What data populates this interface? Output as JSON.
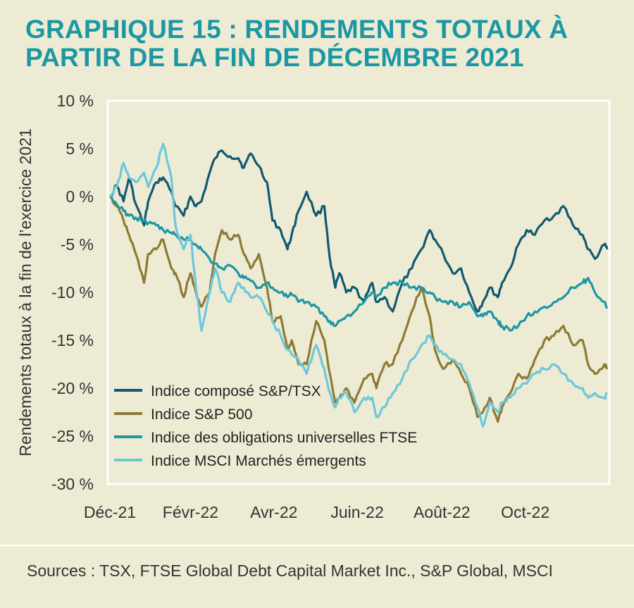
{
  "title": "GRAPHIQUE 15 : RENDEMENTS TOTAUX À PARTIR DE LA FIN DE DÉCEMBRE 2021",
  "source": "Sources : TSX, FTSE Global Debt Capital Market Inc., S&P Global, MSCI",
  "colors": {
    "background": "#eeebd5",
    "title": "#1b98a3",
    "plot_border": "#ffffff"
  },
  "chart_data": {
    "type": "line",
    "title": "GRAPHIQUE 15 : RENDEMENTS TOTAUX À PARTIR DE LA FIN DE DÉCEMBRE 2021",
    "xlabel": "",
    "ylabel": "Rendements totaux à la fin de l’exercice 2021",
    "ylim": [
      -30,
      10
    ],
    "yticks": [
      10,
      5,
      0,
      -5,
      -10,
      -15,
      -20,
      -25,
      -30
    ],
    "ytick_labels": [
      "10 %",
      "5 %",
      "0 %",
      "-5 %",
      "-10 %",
      "-15 %",
      "-20 %",
      "-25 %",
      "-30 %"
    ],
    "xlim": [
      "2021-12-31",
      "2022-12-30"
    ],
    "xticks": [
      "2021-12-31",
      "2022-02-28",
      "2022-04-30",
      "2022-06-30",
      "2022-08-31",
      "2022-10-31"
    ],
    "xtick_labels": [
      "Déc-21",
      "Févr-22",
      "Avr-22",
      "Juin-22",
      "Août-22",
      "Oct-22"
    ],
    "grid": false,
    "legend_position": "bottom-left",
    "series": [
      {
        "name": "Indice composé S&P/TSX",
        "color": "#0f5a70",
        "x": [
          "2021-12-31",
          "2022-01-05",
          "2022-01-10",
          "2022-01-14",
          "2022-01-19",
          "2022-01-25",
          "2022-01-28",
          "2022-02-03",
          "2022-02-08",
          "2022-02-14",
          "2022-02-17",
          "2022-02-23",
          "2022-02-28",
          "2022-03-04",
          "2022-03-08",
          "2022-03-14",
          "2022-03-18",
          "2022-03-23",
          "2022-03-29",
          "2022-04-04",
          "2022-04-08",
          "2022-04-13",
          "2022-04-19",
          "2022-04-25",
          "2022-04-29",
          "2022-05-05",
          "2022-05-10",
          "2022-05-13",
          "2022-05-18",
          "2022-05-24",
          "2022-05-31",
          "2022-06-06",
          "2022-06-10",
          "2022-06-14",
          "2022-06-17",
          "2022-06-22",
          "2022-06-28",
          "2022-07-05",
          "2022-07-11",
          "2022-07-14",
          "2022-07-20",
          "2022-07-26",
          "2022-08-02",
          "2022-08-09",
          "2022-08-16",
          "2022-08-22",
          "2022-08-26",
          "2022-09-01",
          "2022-09-08",
          "2022-09-14",
          "2022-09-20",
          "2022-09-26",
          "2022-09-30",
          "2022-10-05",
          "2022-10-11",
          "2022-10-14",
          "2022-10-20",
          "2022-10-26",
          "2022-11-01",
          "2022-11-07",
          "2022-11-14",
          "2022-11-21",
          "2022-11-28",
          "2022-12-05",
          "2022-12-12",
          "2022-12-16",
          "2022-12-21",
          "2022-12-28",
          "2022-12-30"
        ],
        "y": [
          0,
          1.2,
          -0.5,
          2.0,
          -0.8,
          -3.0,
          -0.5,
          1.5,
          2.0,
          0.5,
          -1.0,
          -2.0,
          0,
          -1.0,
          -0.5,
          2.5,
          4.0,
          4.8,
          4.2,
          4.0,
          3.0,
          4.5,
          3.2,
          1.5,
          -2.5,
          -3.5,
          -5.5,
          -4.0,
          -1.5,
          0.5,
          -2.0,
          -1.0,
          -6.5,
          -9.5,
          -8.0,
          -10.0,
          -9.5,
          -11.0,
          -9.0,
          -11.0,
          -10.5,
          -12.0,
          -9.0,
          -7.5,
          -5.5,
          -3.5,
          -4.5,
          -6.0,
          -8.0,
          -7.5,
          -10.0,
          -12.0,
          -11.0,
          -9.5,
          -10.5,
          -9.0,
          -7.5,
          -5.0,
          -3.5,
          -4.0,
          -2.5,
          -2.0,
          -1.0,
          -3.0,
          -4.0,
          -5.5,
          -6.5,
          -5.0,
          -5.5
        ]
      },
      {
        "name": "Indice S&P 500",
        "color": "#8c7a34",
        "x": [
          "2021-12-31",
          "2022-01-05",
          "2022-01-10",
          "2022-01-14",
          "2022-01-19",
          "2022-01-25",
          "2022-01-28",
          "2022-02-03",
          "2022-02-08",
          "2022-02-14",
          "2022-02-17",
          "2022-02-23",
          "2022-02-28",
          "2022-03-04",
          "2022-03-08",
          "2022-03-14",
          "2022-03-18",
          "2022-03-23",
          "2022-03-29",
          "2022-04-04",
          "2022-04-08",
          "2022-04-13",
          "2022-04-19",
          "2022-04-25",
          "2022-04-29",
          "2022-05-05",
          "2022-05-10",
          "2022-05-13",
          "2022-05-18",
          "2022-05-24",
          "2022-05-31",
          "2022-06-06",
          "2022-06-10",
          "2022-06-14",
          "2022-06-17",
          "2022-06-22",
          "2022-06-28",
          "2022-07-05",
          "2022-07-11",
          "2022-07-14",
          "2022-07-20",
          "2022-07-26",
          "2022-08-02",
          "2022-08-09",
          "2022-08-16",
          "2022-08-22",
          "2022-08-26",
          "2022-09-01",
          "2022-09-08",
          "2022-09-14",
          "2022-09-20",
          "2022-09-26",
          "2022-09-30",
          "2022-10-05",
          "2022-10-11",
          "2022-10-14",
          "2022-10-20",
          "2022-10-26",
          "2022-11-01",
          "2022-11-07",
          "2022-11-14",
          "2022-11-21",
          "2022-11-28",
          "2022-12-05",
          "2022-12-12",
          "2022-12-16",
          "2022-12-21",
          "2022-12-28",
          "2022-12-30"
        ],
        "y": [
          0,
          -1.0,
          -2.5,
          -4.0,
          -6.0,
          -9.0,
          -6.0,
          -5.5,
          -4.5,
          -7.5,
          -8.0,
          -10.5,
          -8.0,
          -10.0,
          -11.5,
          -10.0,
          -6.0,
          -3.5,
          -4.5,
          -4.0,
          -6.0,
          -7.5,
          -6.0,
          -9.5,
          -13.0,
          -12.5,
          -16.0,
          -15.0,
          -17.5,
          -17.5,
          -13.0,
          -15.0,
          -18.5,
          -21.5,
          -21.0,
          -20.0,
          -21.5,
          -19.0,
          -18.5,
          -20.0,
          -17.5,
          -17.5,
          -15.0,
          -12.0,
          -9.5,
          -12.5,
          -16.0,
          -18.0,
          -17.0,
          -18.5,
          -20.0,
          -23.0,
          -22.5,
          -21.0,
          -23.5,
          -22.0,
          -20.5,
          -18.5,
          -19.0,
          -17.0,
          -15.0,
          -14.5,
          -13.5,
          -15.5,
          -15.0,
          -17.5,
          -18.5,
          -17.5,
          -18.0
        ]
      },
      {
        "name": "Indice des obligations universelles FTSE",
        "color": "#1d97a3",
        "x": [
          "2021-12-31",
          "2022-01-05",
          "2022-01-10",
          "2022-01-14",
          "2022-01-19",
          "2022-01-25",
          "2022-01-28",
          "2022-02-03",
          "2022-02-08",
          "2022-02-14",
          "2022-02-17",
          "2022-02-23",
          "2022-02-28",
          "2022-03-04",
          "2022-03-08",
          "2022-03-14",
          "2022-03-18",
          "2022-03-23",
          "2022-03-29",
          "2022-04-04",
          "2022-04-08",
          "2022-04-13",
          "2022-04-19",
          "2022-04-25",
          "2022-04-29",
          "2022-05-05",
          "2022-05-10",
          "2022-05-13",
          "2022-05-18",
          "2022-05-24",
          "2022-05-31",
          "2022-06-06",
          "2022-06-10",
          "2022-06-14",
          "2022-06-17",
          "2022-06-22",
          "2022-06-28",
          "2022-07-05",
          "2022-07-11",
          "2022-07-14",
          "2022-07-20",
          "2022-07-26",
          "2022-08-02",
          "2022-08-09",
          "2022-08-16",
          "2022-08-22",
          "2022-08-26",
          "2022-09-01",
          "2022-09-08",
          "2022-09-14",
          "2022-09-20",
          "2022-09-26",
          "2022-09-30",
          "2022-10-05",
          "2022-10-11",
          "2022-10-14",
          "2022-10-20",
          "2022-10-26",
          "2022-11-01",
          "2022-11-07",
          "2022-11-14",
          "2022-11-21",
          "2022-11-28",
          "2022-12-05",
          "2022-12-12",
          "2022-12-16",
          "2022-12-21",
          "2022-12-28",
          "2022-12-30"
        ],
        "y": [
          0,
          -0.8,
          -1.5,
          -2.0,
          -2.2,
          -2.5,
          -2.8,
          -3.0,
          -3.5,
          -3.8,
          -4.0,
          -4.5,
          -4.5,
          -5.0,
          -5.5,
          -6.5,
          -7.0,
          -7.5,
          -7.2,
          -8.0,
          -8.5,
          -8.8,
          -9.5,
          -9.0,
          -9.5,
          -10.0,
          -10.5,
          -10.2,
          -11.0,
          -11.0,
          -11.5,
          -12.5,
          -13.0,
          -13.5,
          -13.0,
          -12.5,
          -12.0,
          -11.0,
          -10.0,
          -10.5,
          -9.5,
          -9.0,
          -9.0,
          -9.5,
          -9.5,
          -10.0,
          -10.5,
          -11.0,
          -11.0,
          -11.5,
          -11.0,
          -12.5,
          -12.5,
          -12.0,
          -13.0,
          -13.5,
          -14.0,
          -13.5,
          -12.5,
          -12.0,
          -11.5,
          -11.0,
          -10.5,
          -9.5,
          -9.0,
          -8.5,
          -10.0,
          -11.0,
          -11.5
        ]
      },
      {
        "name": "Indice MSCI Marchés émergents",
        "color": "#6cc8d8",
        "x": [
          "2021-12-31",
          "2022-01-05",
          "2022-01-10",
          "2022-01-14",
          "2022-01-19",
          "2022-01-25",
          "2022-01-28",
          "2022-02-03",
          "2022-02-08",
          "2022-02-14",
          "2022-02-17",
          "2022-02-23",
          "2022-02-28",
          "2022-03-04",
          "2022-03-08",
          "2022-03-14",
          "2022-03-18",
          "2022-03-23",
          "2022-03-29",
          "2022-04-04",
          "2022-04-08",
          "2022-04-13",
          "2022-04-19",
          "2022-04-25",
          "2022-04-29",
          "2022-05-05",
          "2022-05-10",
          "2022-05-13",
          "2022-05-18",
          "2022-05-24",
          "2022-05-31",
          "2022-06-06",
          "2022-06-10",
          "2022-06-14",
          "2022-06-17",
          "2022-06-22",
          "2022-06-28",
          "2022-07-05",
          "2022-07-11",
          "2022-07-14",
          "2022-07-20",
          "2022-07-26",
          "2022-08-02",
          "2022-08-09",
          "2022-08-16",
          "2022-08-22",
          "2022-08-26",
          "2022-09-01",
          "2022-09-08",
          "2022-09-14",
          "2022-09-20",
          "2022-09-26",
          "2022-09-30",
          "2022-10-05",
          "2022-10-11",
          "2022-10-14",
          "2022-10-20",
          "2022-10-26",
          "2022-11-01",
          "2022-11-07",
          "2022-11-14",
          "2022-11-21",
          "2022-11-28",
          "2022-12-05",
          "2022-12-12",
          "2022-12-16",
          "2022-12-21",
          "2022-12-28",
          "2022-12-30"
        ],
        "y": [
          0,
          1.0,
          3.5,
          2.0,
          1.5,
          2.5,
          1.0,
          3.0,
          5.5,
          2.0,
          -3.0,
          -5.5,
          -4.0,
          -9.5,
          -14.0,
          -10.0,
          -7.5,
          -10.0,
          -11.0,
          -9.0,
          -9.5,
          -10.5,
          -10.5,
          -12.0,
          -13.0,
          -14.5,
          -16.0,
          -16.5,
          -17.0,
          -18.5,
          -15.5,
          -18.0,
          -20.5,
          -22.0,
          -21.0,
          -20.5,
          -22.5,
          -21.0,
          -21.0,
          -23.0,
          -22.0,
          -20.5,
          -19.0,
          -17.0,
          -15.5,
          -14.5,
          -15.5,
          -16.5,
          -17.0,
          -17.5,
          -19.5,
          -22.0,
          -24.0,
          -21.5,
          -22.5,
          -21.5,
          -21.0,
          -20.0,
          -19.5,
          -18.5,
          -18.0,
          -17.5,
          -18.5,
          -19.5,
          -20.0,
          -21.0,
          -20.5,
          -21.0,
          -20.5
        ]
      }
    ]
  }
}
